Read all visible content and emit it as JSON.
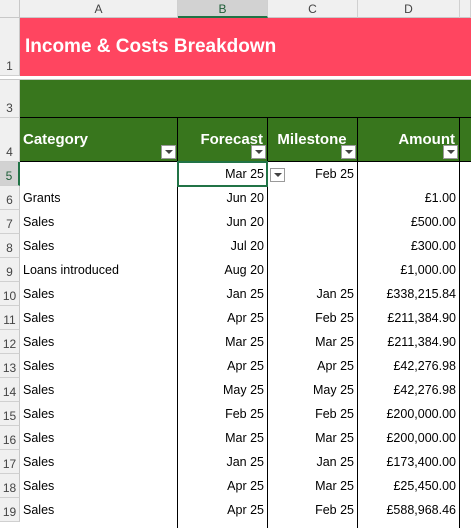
{
  "sheet": {
    "column_letters": [
      "A",
      "B",
      "C",
      "D"
    ],
    "row_numbers": [
      1,
      3,
      4,
      5,
      6,
      7,
      8,
      9,
      10,
      11,
      12,
      13,
      14,
      15,
      16,
      17,
      18,
      19
    ],
    "title": "Income & Costs Breakdown",
    "headers": [
      "Category",
      "Forecast",
      "Milestone",
      "Amount"
    ],
    "rows": [
      [
        null,
        "Mar 25",
        "Feb 25",
        null
      ],
      [
        "Grants",
        "Jun 20",
        null,
        "£1.00"
      ],
      [
        "Sales",
        "Jun 20",
        null,
        "£500.00"
      ],
      [
        "Sales",
        "Jul 20",
        null,
        "£300.00"
      ],
      [
        "Loans introduced",
        "Aug 20",
        null,
        "£1,000.00"
      ],
      [
        "Sales",
        "Jan 25",
        "Jan 25",
        "£338,215.84"
      ],
      [
        "Sales",
        "Apr 25",
        "Feb 25",
        "£211,384.90"
      ],
      [
        "Sales",
        "Mar 25",
        "Mar 25",
        "£211,384.90"
      ],
      [
        "Sales",
        "Apr 25",
        "Apr 25",
        "£42,276.98"
      ],
      [
        "Sales",
        "May 25",
        "May 25",
        "£42,276.98"
      ],
      [
        "Sales",
        "Feb 25",
        "Feb 25",
        "£200,000.00"
      ],
      [
        "Sales",
        "Mar 25",
        "Mar 25",
        "£200,000.00"
      ],
      [
        "Sales",
        "Jan 25",
        "Jan 25",
        "£173,400.00"
      ],
      [
        "Sales",
        "Apr 25",
        "Mar 25",
        "£25,450.00"
      ],
      [
        "Sales",
        "Apr 25",
        "Feb 25",
        "£588,968.46"
      ]
    ]
  }
}
